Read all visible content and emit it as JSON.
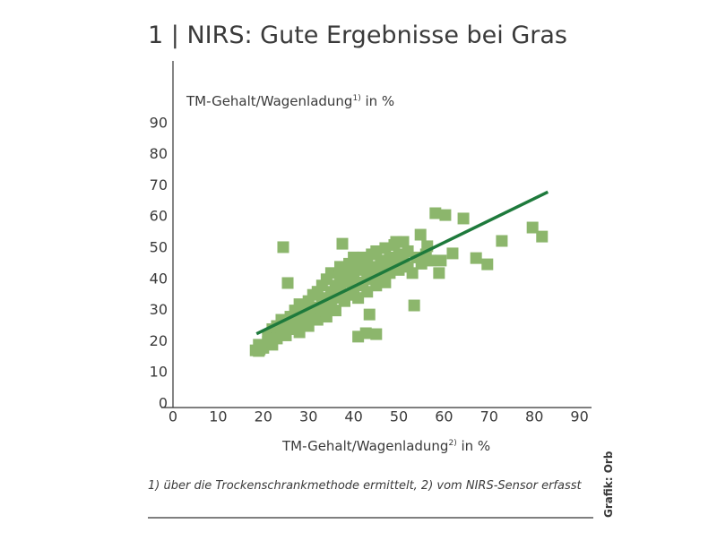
{
  "chart_data": {
    "type": "scatter",
    "title": "1 | NIRS: Gute Ergebnisse bei Gras",
    "ylabel": "TM-Gehalt/Wagenladung",
    "ylabel_sup": "1)",
    "ylabel_unit": " in %",
    "xlabel": "TM-Gehalt/Wagenladung",
    "xlabel_sup": "2)",
    "xlabel_unit": " in %",
    "footnote": "1) über die Trockenschrankmethode ermittelt, 2) vom NIRS-Sensor erfasst",
    "source": "Grafik: Orb",
    "xlim": [
      0,
      92
    ],
    "ylim": [
      0,
      110
    ],
    "xticks": [
      0,
      10,
      20,
      30,
      40,
      50,
      60,
      70,
      80,
      90
    ],
    "yticks": [
      0,
      10,
      20,
      30,
      40,
      50,
      60,
      70,
      80,
      90
    ],
    "points": {
      "color": "#8cb66c",
      "x": [
        19,
        20,
        19,
        21,
        22,
        21,
        22,
        23,
        23,
        24,
        24,
        25,
        25,
        26,
        26,
        27,
        27,
        28,
        28,
        28,
        29,
        29,
        30,
        30,
        30,
        31,
        31,
        32,
        32,
        32,
        33,
        33,
        33,
        34,
        34,
        34,
        35,
        35,
        35,
        36,
        36,
        36,
        37,
        37,
        37,
        38,
        38,
        38,
        39,
        39,
        39,
        40,
        40,
        40,
        41,
        41,
        41,
        42,
        42,
        42,
        43,
        43,
        43,
        44,
        44,
        44,
        45,
        45,
        45,
        46,
        46,
        47,
        47,
        47,
        48,
        48,
        49,
        49,
        50,
        50,
        51,
        51,
        52,
        52,
        53,
        54,
        55,
        56,
        57,
        24.4,
        25.4,
        37.5,
        58.1,
        60.3,
        64.3,
        72.8,
        79.6,
        81.7,
        67.1,
        69.6,
        61.9,
        59.3,
        58.9,
        54.8,
        53.4,
        43.5,
        41,
        45,
        42.7,
        56.3,
        49.4,
        19.2,
        18.3
      ],
      "y": [
        17,
        18,
        19,
        20,
        19,
        22,
        24,
        21,
        25,
        23,
        27,
        22,
        26,
        24,
        28,
        25,
        30,
        23,
        27,
        32,
        26,
        30,
        28,
        33,
        25,
        29,
        35,
        27,
        31,
        36,
        30,
        34,
        38,
        28,
        33,
        40,
        31,
        36,
        42,
        34,
        38,
        30,
        36,
        41,
        44,
        33,
        39,
        43,
        35,
        40,
        45,
        37,
        42,
        47,
        34,
        39,
        44,
        38,
        43,
        47,
        36,
        41,
        46,
        40,
        44,
        48,
        38,
        43,
        49,
        41,
        46,
        39,
        44,
        50,
        42,
        47,
        45,
        51,
        43,
        48,
        46,
        52,
        44,
        49,
        42,
        47,
        45,
        48,
        46,
        50.3,
        38.8,
        51.4,
        61.2,
        60.6,
        59.5,
        52.3,
        56.6,
        53.7,
        46.8,
        44.8,
        48.3,
        46,
        42,
        54.3,
        31.6,
        28.7,
        21.6,
        22.4,
        22.7,
        50.6,
        52,
        17.5,
        17.2
      ]
    },
    "trend": {
      "color": "#1e7a3c",
      "x": [
        18.5,
        83
      ],
      "y": [
        22.5,
        68
      ]
    }
  }
}
